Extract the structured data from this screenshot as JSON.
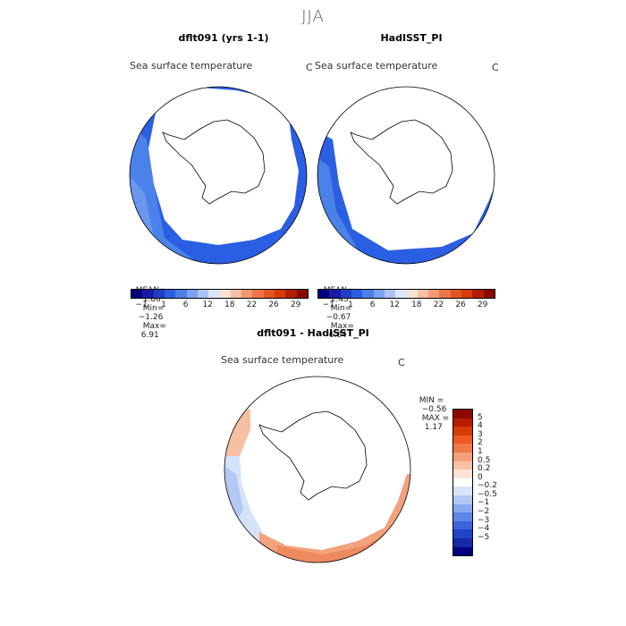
{
  "season": "JJA",
  "panels": [
    {
      "title": "dflt091 (yrs 1-1)",
      "variable": "Sea surface temperature",
      "unit": "C",
      "stats": {
        "mean_label": "MEAN=",
        "mean": "1.86",
        "min_label": "Min=",
        "min": "−1.26",
        "max_label": "Max=",
        "max": "6.91"
      }
    },
    {
      "title": "HadISST_PI",
      "variable": "Sea surface temperature",
      "unit": "C",
      "stats": {
        "mean_label": "MEAN=",
        "mean": "2.45",
        "min_label": "Min=",
        "min": "−0.67",
        "max_label": "Max=",
        "max": "6.04"
      }
    }
  ],
  "colorbar_top": {
    "labels": [
      "−1",
      "1",
      "6",
      "12",
      "18",
      "22",
      "26",
      "29"
    ],
    "colors": [
      "#00007f",
      "#1a1aa5",
      "#1f3ec8",
      "#2a5fe0",
      "#4d7fe8",
      "#7da0f0",
      "#aac3f5",
      "#dbe6fa",
      "#fbe1d4",
      "#f6bea2",
      "#f19a72",
      "#ec7546",
      "#e35521",
      "#d83a0a",
      "#b51c00",
      "#8a0a00"
    ]
  },
  "diff_panel": {
    "title": "dflt091 - HadISST_PI",
    "variable": "Sea surface temperature",
    "unit": "C",
    "min_label": "MIN =",
    "min": "−0.56",
    "max_label": "MAX =",
    "max": "1.17"
  },
  "colorbar_diff": {
    "labels": [
      "5",
      "4",
      "3",
      "2",
      "1",
      "0.5",
      "0.2",
      "0",
      "−0.2",
      "−0.5",
      "−1",
      "−2",
      "−3",
      "−4",
      "−5"
    ],
    "colors": [
      "#8a0a00",
      "#b51c00",
      "#d83a0a",
      "#ec5a20",
      "#f07a48",
      "#f4a07a",
      "#f7c3a6",
      "#fbe3d4",
      "#ffffff",
      "#d8e5f8",
      "#b3c9f3",
      "#87a9ee",
      "#5d86e6",
      "#3a64dc",
      "#1f44c8",
      "#1428a8",
      "#00007f"
    ]
  }
}
